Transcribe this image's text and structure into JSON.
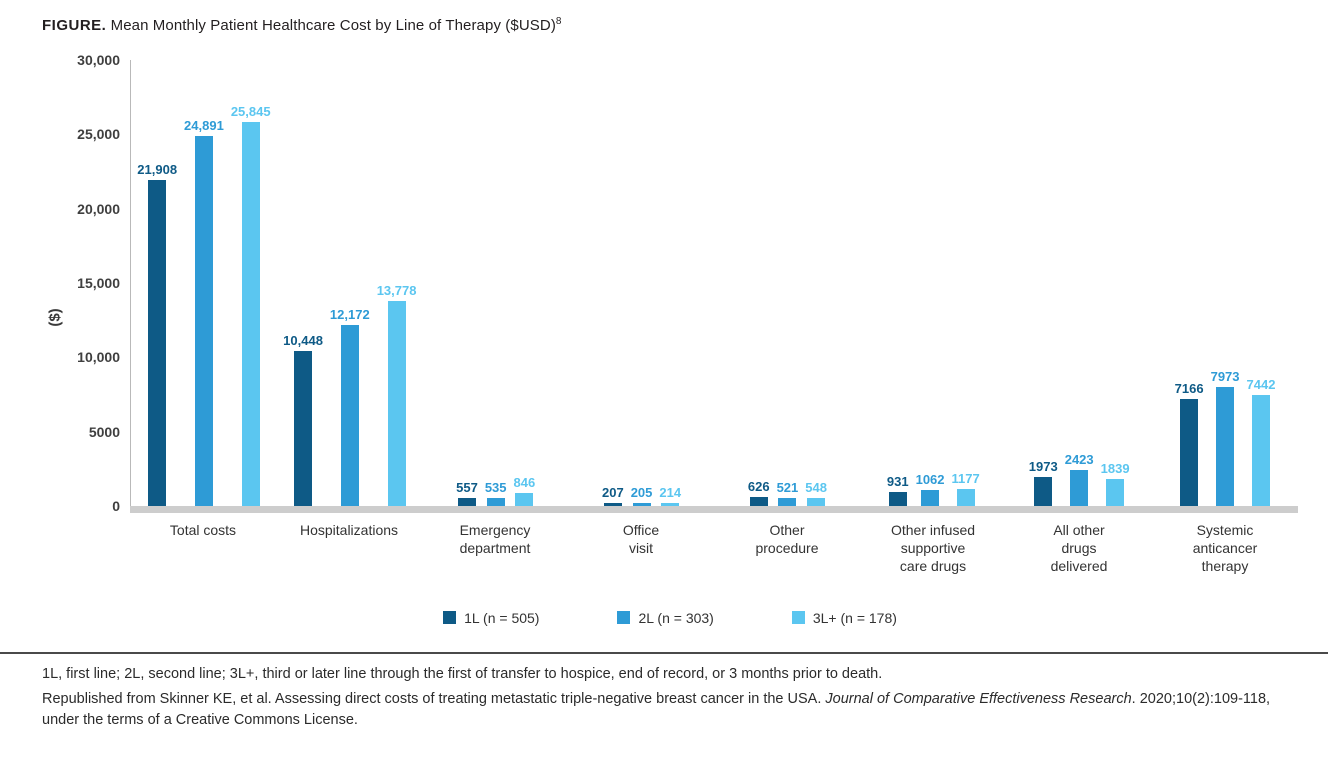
{
  "figure": {
    "label": "FIGURE.",
    "title": " Mean Monthly Patient Healthcare Cost by Line of Therapy ($USD)",
    "title_superscript": "8"
  },
  "chart_data": {
    "type": "bar",
    "title": "Mean Monthly Patient Healthcare Cost by Line of Therapy ($USD)",
    "ylabel": "($)",
    "ylim": [
      0,
      30000
    ],
    "grid": false,
    "legend_position": "bottom",
    "yticks": [
      {
        "value": 0,
        "label": "0"
      },
      {
        "value": 5000,
        "label": "5000"
      },
      {
        "value": 10000,
        "label": "10,000"
      },
      {
        "value": 15000,
        "label": "15,000"
      },
      {
        "value": 20000,
        "label": "20,000"
      },
      {
        "value": 25000,
        "label": "25,000"
      },
      {
        "value": 30000,
        "label": "30,000"
      }
    ],
    "categories": [
      "Total costs",
      "Hospitalizations",
      "Emergency\ndepartment",
      "Office\nvisit",
      "Other\nprocedure",
      "Other infused\nsupportive\ncare drugs",
      "All other\ndrugs\ndelivered",
      "Systemic\nanticancer\ntherapy"
    ],
    "series": [
      {
        "name": "1L (n = 505)",
        "color": "#0e5a86",
        "values": [
          21908,
          10448,
          557,
          207,
          626,
          931,
          1973,
          7166
        ],
        "value_labels": [
          "21,908",
          "10,448",
          "557",
          "207",
          "626",
          "931",
          "1973",
          "7166"
        ]
      },
      {
        "name": "2L (n = 303)",
        "color": "#2e9bd6",
        "values": [
          24891,
          12172,
          535,
          205,
          521,
          1062,
          2423,
          7973
        ],
        "value_labels": [
          "24,891",
          "12,172",
          "535",
          "205",
          "521",
          "1062",
          "2423",
          "7973"
        ]
      },
      {
        "name": "3L+ (n = 178)",
        "color": "#5bc6f0",
        "values": [
          25845,
          13778,
          846,
          214,
          548,
          1177,
          1839,
          7442
        ],
        "value_labels": [
          "25,845",
          "13,778",
          "846",
          "214",
          "548",
          "1177",
          "1839",
          "7442"
        ]
      }
    ]
  },
  "footnotes": {
    "line1": "1L, first line; 2L, second line; 3L+, third or later line through the first of transfer to hospice, end of record, or 3 months prior to death.",
    "line2_pre": "Republished from Skinner KE, et al. Assessing direct costs of treating metastatic triple-negative breast cancer in the USA. ",
    "line2_italic": "Journal of Comparative Effectiveness Research",
    "line2_post": ". 2020;10(2):109-118, under the terms of a Creative Commons License."
  }
}
